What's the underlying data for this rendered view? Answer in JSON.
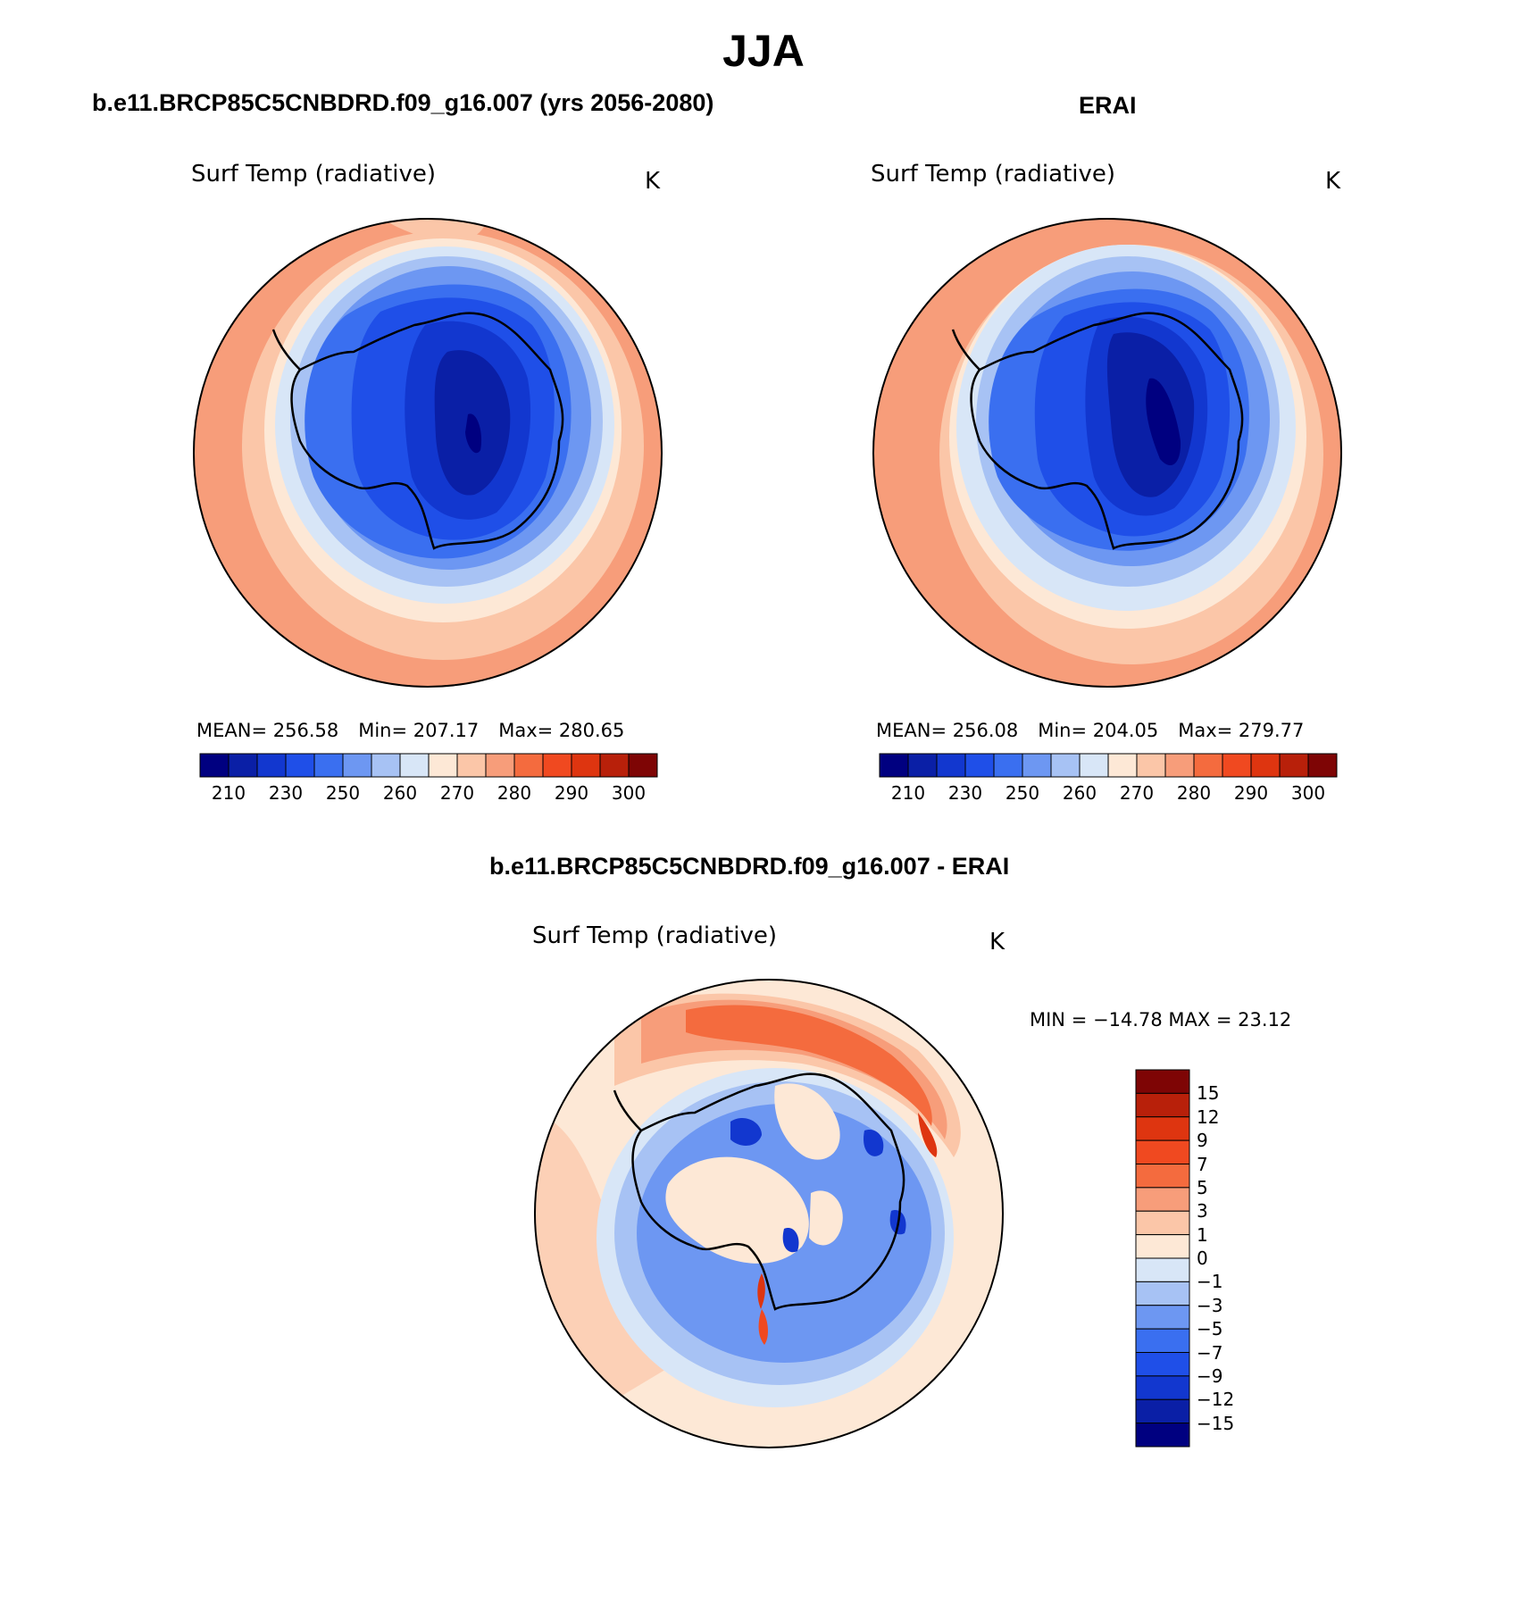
{
  "title": "JJA",
  "panels": [
    {
      "case_title": "b.e11.BRCP85C5CNBDRD.f09_g16.007 (yrs 2056-2080)",
      "var_title": "Surf Temp (radiative)",
      "units": "K",
      "mean_label": "MEAN=  256.58",
      "min_label": "Min=  207.17",
      "max_label": "Max=  280.65"
    },
    {
      "case_title": "ERAI",
      "var_title": "Surf Temp (radiative)",
      "units": "K",
      "mean_label": "MEAN=  256.08",
      "min_label": "Min=  204.05",
      "max_label": "Max=  279.77"
    },
    {
      "case_title": "b.e11.BRCP85C5CNBDRD.f09_g16.007 - ERAI",
      "var_title": "Surf Temp (radiative)",
      "units": "K",
      "minmax_label": "MIN = −14.78  MAX =   23.12"
    }
  ],
  "abs_colorbar": {
    "colors": [
      "#000080",
      "#0a1fa6",
      "#1237cf",
      "#1f4fe8",
      "#3a6ff0",
      "#6d97f2",
      "#a7c2f4",
      "#d8e6f7",
      "#fde8d6",
      "#fbc6a8",
      "#f79d7a",
      "#f46b3e",
      "#f04920",
      "#de3510",
      "#b8200a",
      "#7e0505"
    ],
    "ticks": [
      "210",
      "230",
      "250",
      "260",
      "270",
      "280",
      "290",
      "300"
    ]
  },
  "diff_colorbar": {
    "colors": [
      "#000080",
      "#0a1fa6",
      "#1237cf",
      "#1f4fe8",
      "#3a6ff0",
      "#6d97f2",
      "#a7c2f4",
      "#d8e6f7",
      "#fde8d6",
      "#fbc6a8",
      "#f79d7a",
      "#f46b3e",
      "#f04920",
      "#de3510",
      "#b8200a",
      "#7e0505"
    ],
    "ticks": [
      "15",
      "12",
      "9",
      "7",
      "5",
      "3",
      "1",
      "0",
      "−1",
      "−3",
      "−5",
      "−7",
      "−9",
      "−12",
      "−15"
    ]
  }
}
